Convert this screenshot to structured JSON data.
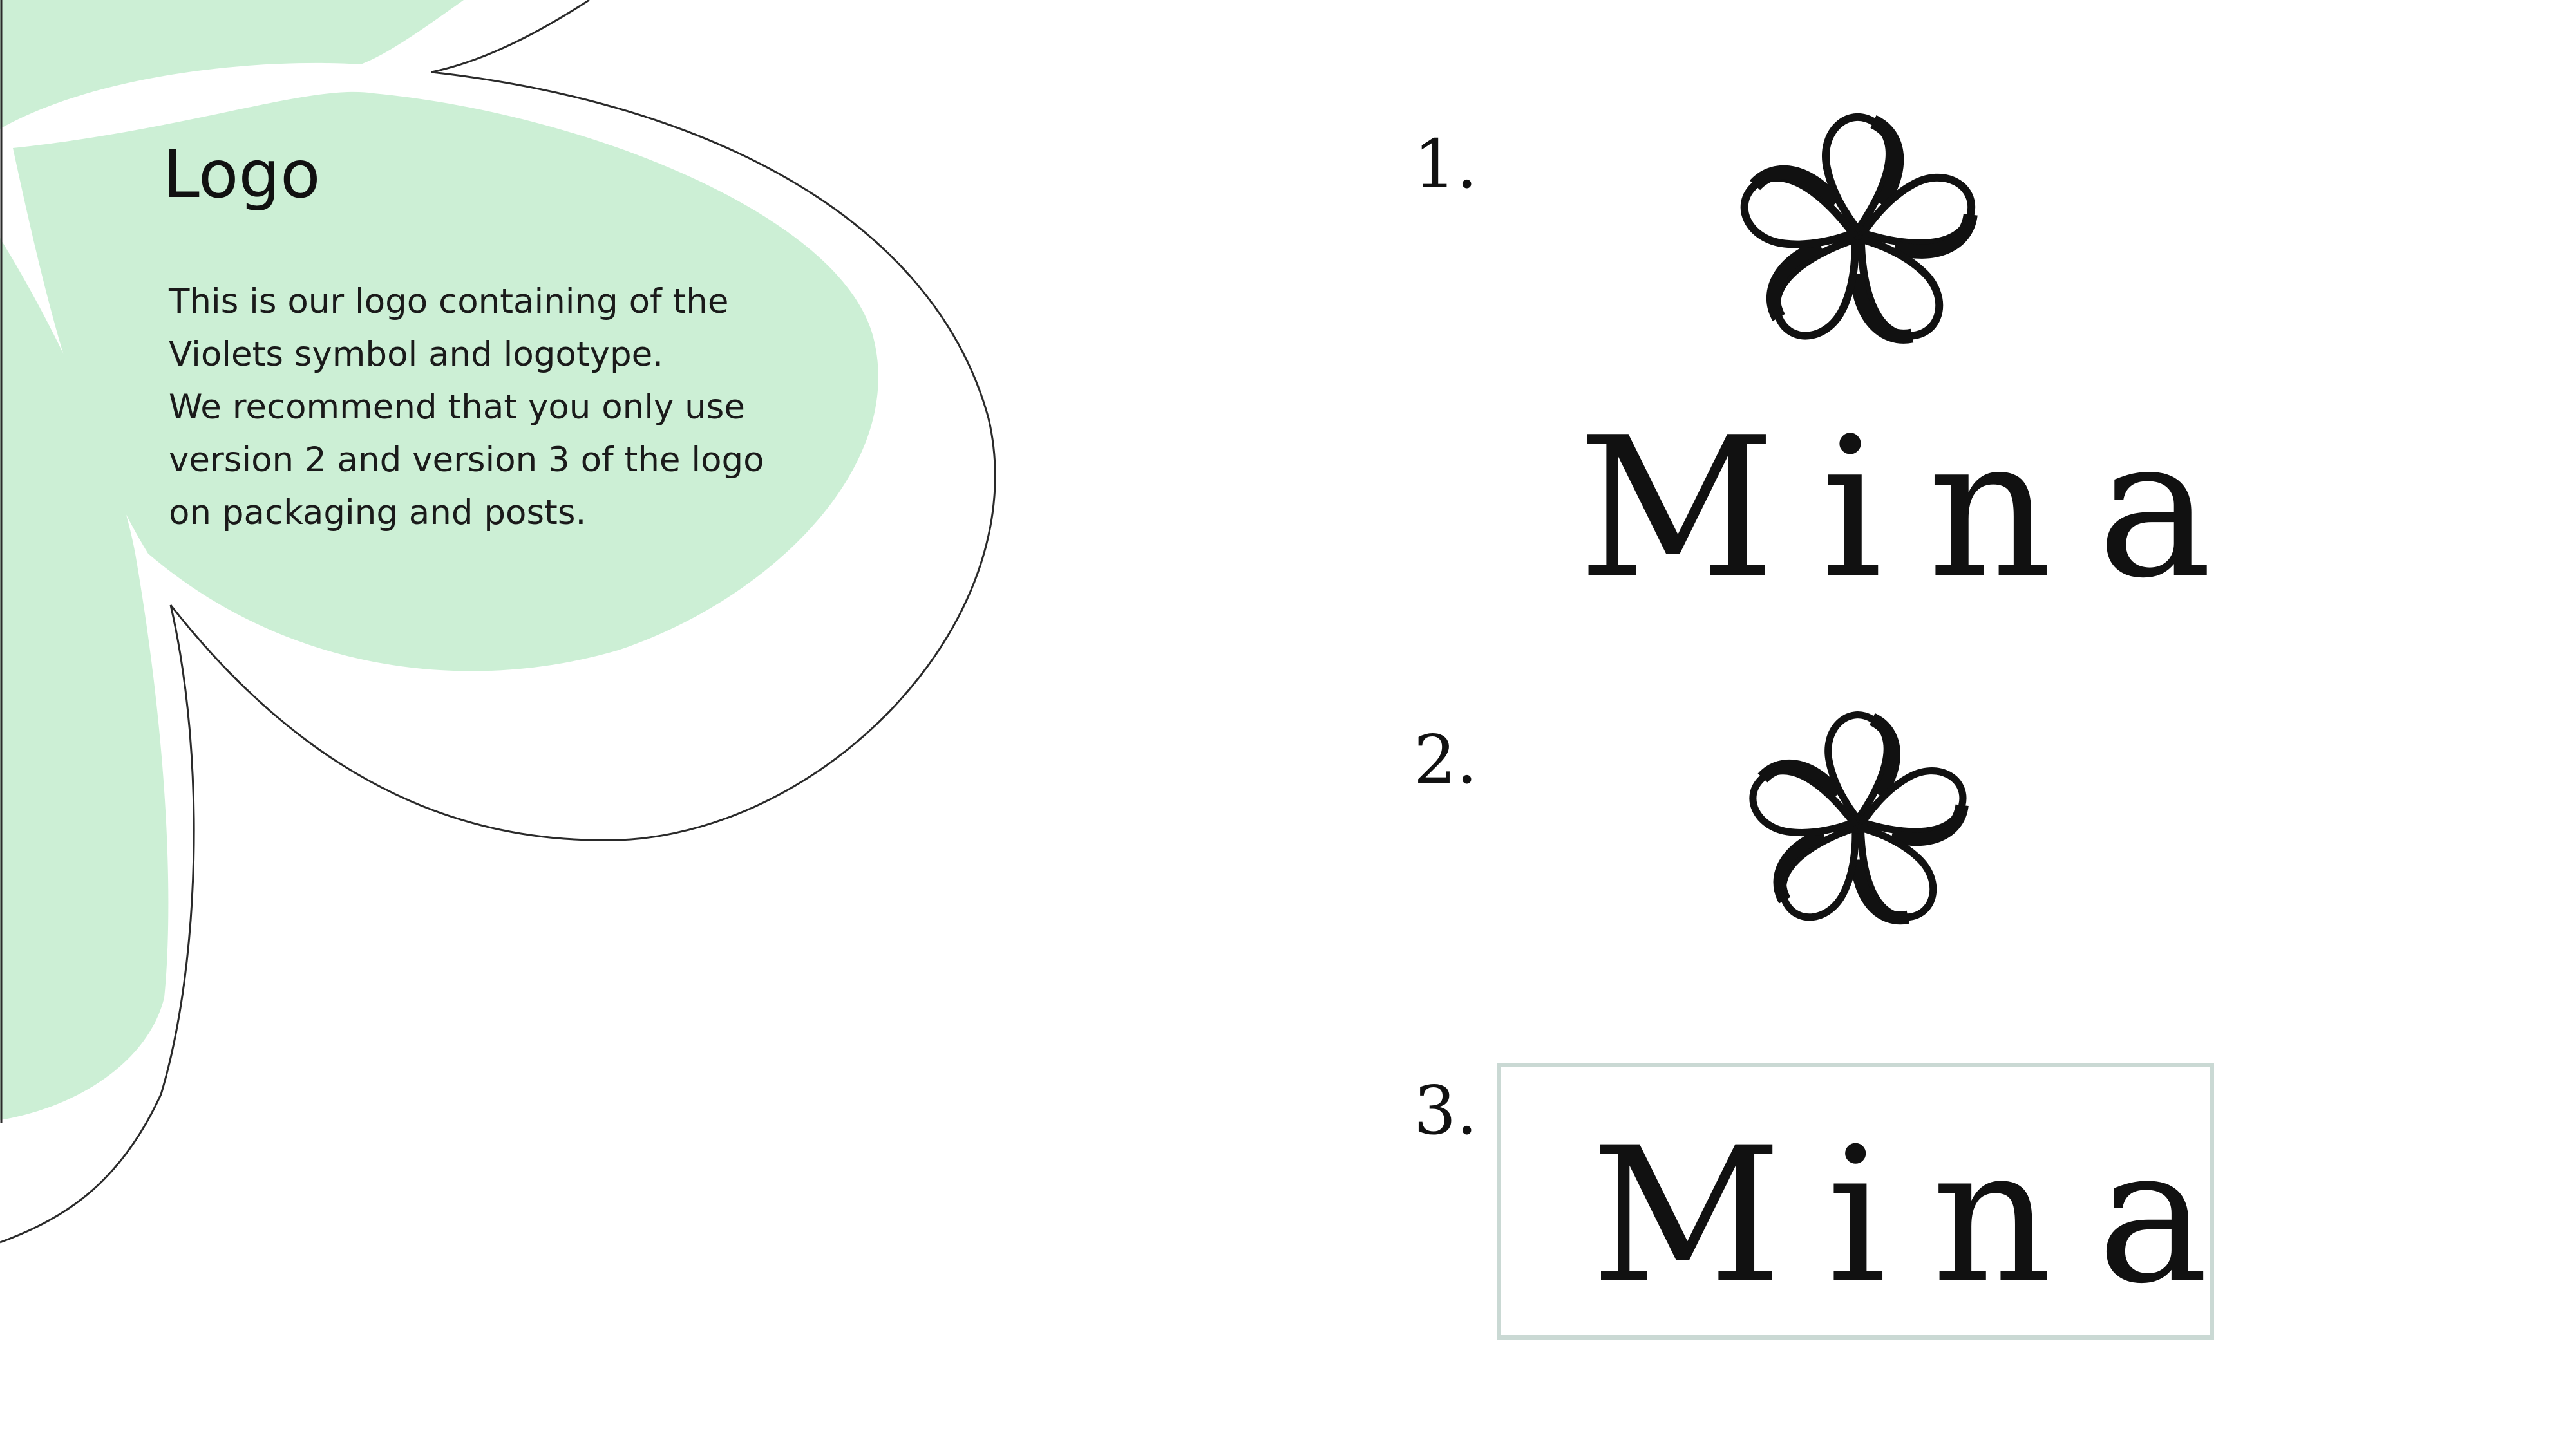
{
  "colors": {
    "accent_green": "#ccefd5",
    "frame_border": "#cad9d4",
    "text": "#111111",
    "background": "#ffffff"
  },
  "section": {
    "title": "Logo",
    "description_lines": [
      "This is our logo containing of the",
      "Violets symbol and logotype.",
      "We recommend that you only use",
      "version 2 and version 3 of the logo",
      "on packaging and posts."
    ]
  },
  "versions": [
    {
      "number": "1.",
      "wordmark": "Mina",
      "symbol": "flower-icon"
    },
    {
      "number": "2.",
      "symbol": "flower-icon"
    },
    {
      "number": "3.",
      "wordmark": "Mina"
    }
  ]
}
